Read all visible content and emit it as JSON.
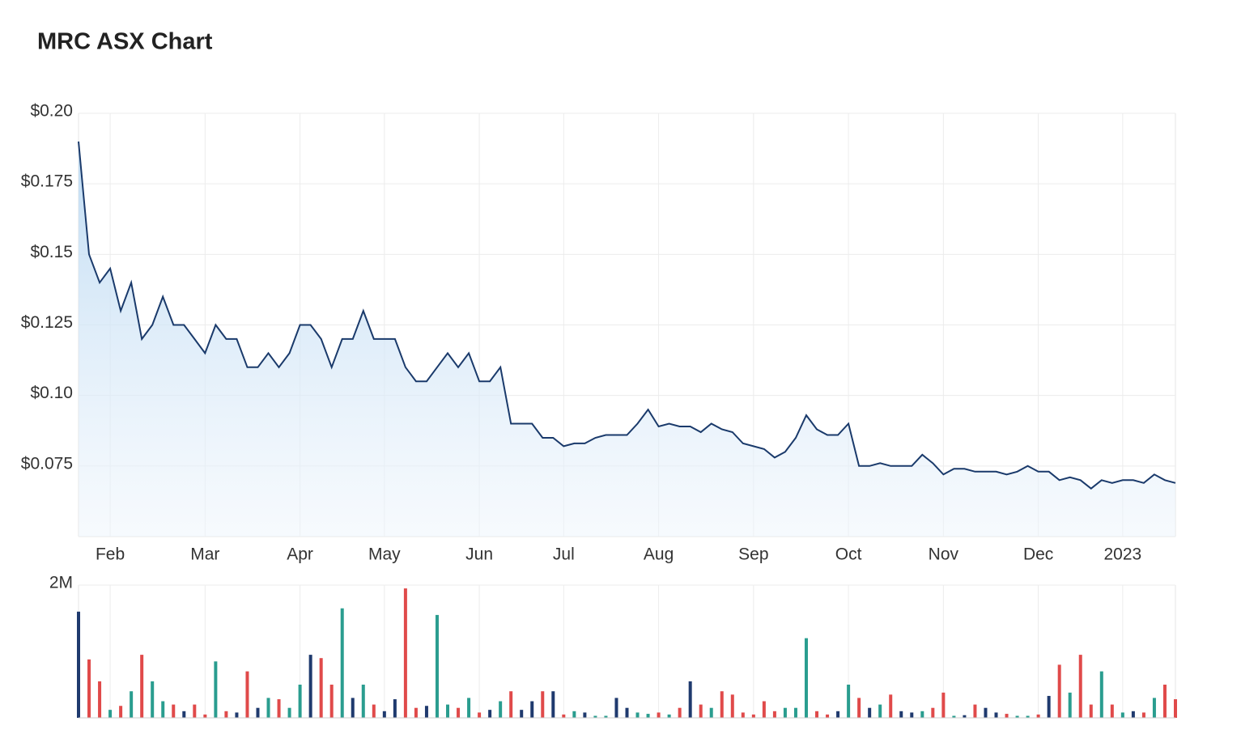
{
  "chart_data": {
    "type": "line",
    "title": "MRC ASX Chart",
    "categories": [
      null,
      null,
      null,
      "Feb",
      null,
      null,
      null,
      null,
      null,
      null,
      null,
      null,
      "Mar",
      null,
      null,
      null,
      null,
      null,
      null,
      null,
      null,
      "Apr",
      null,
      null,
      null,
      null,
      null,
      null,
      null,
      "May",
      null,
      null,
      null,
      null,
      null,
      null,
      null,
      null,
      "Jun",
      null,
      null,
      null,
      null,
      null,
      null,
      null,
      "Jul",
      null,
      null,
      null,
      null,
      null,
      null,
      null,
      null,
      "Aug",
      null,
      null,
      null,
      null,
      null,
      null,
      null,
      null,
      "Sep",
      null,
      null,
      null,
      null,
      null,
      null,
      null,
      null,
      "Oct",
      null,
      null,
      null,
      null,
      null,
      null,
      null,
      null,
      "Nov",
      null,
      null,
      null,
      null,
      null,
      null,
      null,
      null,
      "Dec",
      null,
      null,
      null,
      null,
      null,
      null,
      null,
      "2023",
      null,
      null,
      null,
      null,
      null
    ],
    "series": [
      {
        "color": "#1a3a6b",
        "area": true,
        "values": [
          0.19,
          0.15,
          0.14,
          0.145,
          0.13,
          0.14,
          0.12,
          0.125,
          0.135,
          0.125,
          0.125,
          0.12,
          0.115,
          0.125,
          0.12,
          0.12,
          0.11,
          0.11,
          0.115,
          0.11,
          0.115,
          0.125,
          0.125,
          0.12,
          0.11,
          0.12,
          0.12,
          0.13,
          0.12,
          0.12,
          0.12,
          0.11,
          0.105,
          0.105,
          0.11,
          0.115,
          0.11,
          0.115,
          0.105,
          0.105,
          0.11,
          0.09,
          0.09,
          0.09,
          0.085,
          0.085,
          0.082,
          0.083,
          0.083,
          0.085,
          0.086,
          0.086,
          0.086,
          0.09,
          0.095,
          0.089,
          0.09,
          0.089,
          0.089,
          0.087,
          0.09,
          0.088,
          0.087,
          0.083,
          0.082,
          0.081,
          0.078,
          0.08,
          0.085,
          0.093,
          0.088,
          0.086,
          0.086,
          0.09,
          0.075,
          0.075,
          0.076,
          0.075,
          0.075,
          0.075,
          0.079,
          0.076,
          0.072,
          0.074,
          0.074,
          0.073,
          0.073,
          0.073,
          0.072,
          0.073,
          0.075,
          0.073,
          0.073,
          0.07,
          0.071,
          0.07,
          0.067,
          0.07,
          0.069,
          0.07,
          0.07,
          0.069,
          0.072,
          0.07,
          0.069
        ]
      },
      {
        "type": "bar",
        "axis": "y2",
        "up_color": "#2a9d8f",
        "down_color": "#e04a4a",
        "flat_color": "#1f3a6e",
        "values": [
          1600000,
          880000,
          550000,
          120000,
          180000,
          400000,
          950000,
          550000,
          250000,
          200000,
          100000,
          200000,
          50000,
          850000,
          100000,
          80000,
          700000,
          150000,
          300000,
          280000,
          150000,
          500000,
          950000,
          900000,
          500000,
          1650000,
          300000,
          500000,
          200000,
          100000,
          280000,
          1950000,
          150000,
          180000,
          1550000,
          200000,
          150000,
          300000,
          80000,
          120000,
          250000,
          400000,
          120000,
          250000,
          400000,
          400000,
          50000,
          100000,
          80000,
          30000,
          30000,
          300000,
          150000,
          80000,
          60000,
          80000,
          50000,
          150000,
          550000,
          200000,
          150000,
          400000,
          350000,
          80000,
          50000,
          250000,
          100000,
          150000,
          150000,
          1200000,
          100000,
          50000,
          100000,
          500000,
          300000,
          150000,
          200000,
          350000,
          100000,
          80000,
          100000,
          150000,
          380000,
          30000,
          40000,
          200000,
          150000,
          80000,
          60000,
          30000,
          30000,
          50000,
          330000,
          800000,
          380000,
          950000,
          200000,
          700000,
          200000,
          80000,
          100000,
          80000,
          300000,
          500000,
          280000
        ]
      }
    ],
    "ylim": [
      0.05,
      0.2
    ],
    "yticks": [
      {
        "value": 0.2,
        "label": "$0.20"
      },
      {
        "value": 0.175,
        "label": "$0.175"
      },
      {
        "value": 0.15,
        "label": "$0.15"
      },
      {
        "value": 0.125,
        "label": "$0.125"
      },
      {
        "value": 0.1,
        "label": "$0.10"
      },
      {
        "value": 0.075,
        "label": "$0.075"
      }
    ],
    "y2lim": [
      0,
      2000000
    ],
    "y2ticks": [
      {
        "value": 2000000,
        "label": "2M"
      }
    ],
    "grid": true
  }
}
